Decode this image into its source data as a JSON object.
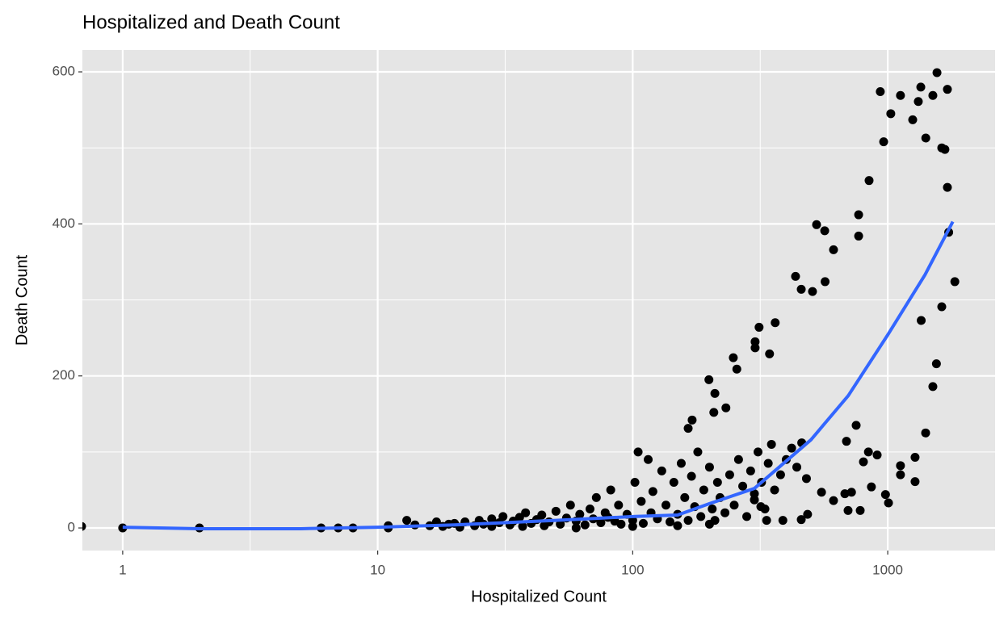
{
  "chart_data": {
    "type": "scatter",
    "title": "Hospitalized and Death Count",
    "x_label": "Hospitalized Count",
    "y_label": "Death Count",
    "x_log": true,
    "grid": true,
    "xlim": [
      0.695,
      2636
    ],
    "ylim": [
      -29.7,
      628.7
    ],
    "xticks": [
      1,
      10,
      100,
      1000
    ],
    "yticks": [
      0,
      200,
      400,
      600
    ],
    "x_minor_ticks": [
      3.162,
      31.62,
      316.2
    ],
    "y_minor_ticks": [
      100,
      300,
      500
    ],
    "points": {
      "color": "#000000",
      "x": [
        0.69,
        1,
        2,
        6,
        7,
        8,
        11,
        11,
        13,
        14,
        16,
        17,
        18,
        19,
        20,
        21,
        22,
        24,
        25,
        26,
        28,
        28,
        30,
        31,
        33,
        34,
        36,
        37,
        38,
        40,
        42,
        44,
        45,
        47,
        50,
        52,
        55,
        57,
        60,
        60,
        62,
        65,
        68,
        70,
        72,
        75,
        78,
        80,
        82,
        85,
        88,
        90,
        95,
        100,
        100,
        102,
        105,
        108,
        110,
        115,
        118,
        120,
        125,
        130,
        135,
        140,
        145,
        150,
        150,
        155,
        160,
        165,
        170,
        175,
        180,
        185,
        190,
        200,
        200,
        205,
        210,
        215,
        220,
        230,
        240,
        250,
        260,
        270,
        280,
        290,
        300,
        310,
        320,
        330,
        340,
        350,
        360,
        380,
        400,
        420,
        440,
        460,
        480,
        1560,
        1714,
        1348,
        935,
        1503,
        1122,
        1318,
        1028,
        1253,
        1410,
        964,
        1629,
        1676,
        1714,
        845,
        769,
        769,
        526,
        566,
        613,
        568,
        435,
        458,
        507,
        1734,
        1833,
        1629,
        1353,
        362,
        313,
        302,
        302,
        344,
        248,
        256,
        199,
        210,
        232,
        208,
        171,
        165,
        1552,
        1503,
        1408,
        1280,
        1280,
        1007,
        980,
        909,
        803,
        752,
        840,
        863,
        689,
        721,
        699,
        613,
        550,
        485,
        458,
        388,
        335,
        318,
        300,
        1122,
        1122,
        679,
        780
      ],
      "y": [
        2,
        0,
        0,
        0,
        0,
        0,
        3,
        0,
        10,
        4,
        3,
        8,
        2,
        5,
        6,
        1,
        8,
        3,
        10,
        5,
        2,
        12,
        7,
        15,
        4,
        9,
        14,
        2,
        20,
        6,
        11,
        17,
        3,
        8,
        22,
        5,
        13,
        30,
        9,
        0,
        18,
        4,
        25,
        12,
        40,
        7,
        20,
        14,
        50,
        9,
        30,
        5,
        18,
        10,
        2,
        60,
        100,
        35,
        6,
        90,
        20,
        48,
        12,
        75,
        30,
        8,
        60,
        18,
        3,
        85,
        40,
        10,
        68,
        28,
        100,
        15,
        50,
        80,
        5,
        25,
        10,
        60,
        40,
        20,
        70,
        30,
        90,
        55,
        15,
        75,
        45,
        100,
        60,
        25,
        85,
        110,
        50,
        70,
        90,
        105,
        80,
        112,
        65,
        599,
        577,
        580,
        574,
        569,
        569,
        561,
        545,
        537,
        513,
        508,
        500,
        498,
        448,
        457,
        412,
        384,
        399,
        391,
        366,
        324,
        331,
        314,
        311,
        389,
        324,
        291,
        273,
        270,
        264,
        245,
        237,
        229,
        224,
        209,
        195,
        177,
        158,
        152,
        142,
        131,
        216,
        186,
        125,
        93,
        61,
        33,
        44,
        96,
        87,
        135,
        100,
        54,
        114,
        47,
        23,
        36,
        47,
        18,
        11,
        10,
        10,
        28,
        37,
        82,
        70,
        45,
        23
      ]
    },
    "smooth": {
      "color": "#3366ff",
      "x": [
        1,
        2,
        5,
        10,
        20,
        50,
        100,
        150,
        200,
        300,
        500,
        700,
        1000,
        1400,
        1800
      ],
      "y": [
        1,
        -1,
        -1,
        1,
        4,
        10,
        15,
        17,
        32,
        52,
        116,
        174,
        254,
        333,
        403
      ]
    }
  }
}
